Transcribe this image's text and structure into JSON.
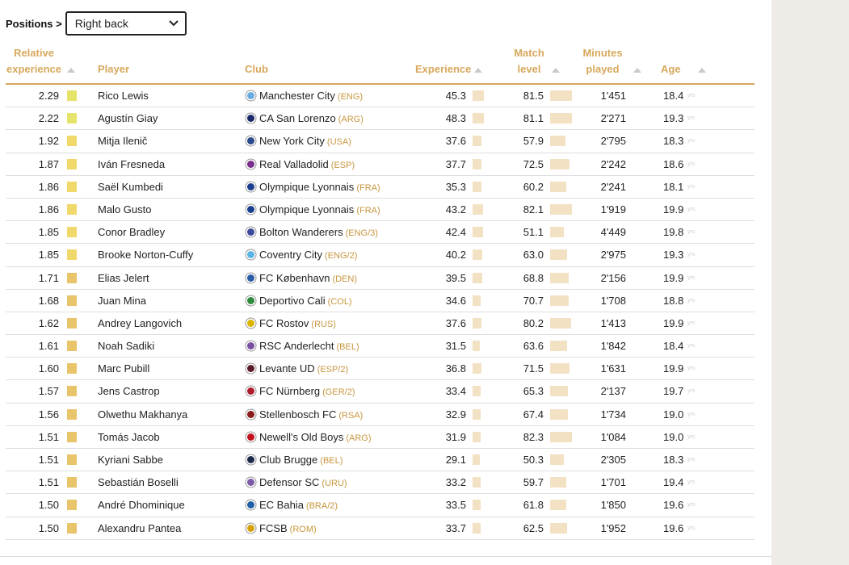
{
  "filter": {
    "label": "Positions >",
    "selected": "Right back"
  },
  "columns": {
    "relative_experience": [
      "Relative",
      "experience"
    ],
    "player": "Player",
    "club": "Club",
    "experience": "Experience",
    "match_level": [
      "Match",
      "level"
    ],
    "minutes_played": [
      "Minutes",
      "played"
    ],
    "age": "Age"
  },
  "age_unit": "yrs",
  "colors": {
    "header_text": "#d8a85c",
    "country_code": "#c8963e",
    "bar_fill": "#f3e1c4",
    "rel_bar_high": "#e6e36a",
    "rel_bar_mid": "#f0d86a",
    "rel_bar_low": "#e8c46a"
  },
  "rows": [
    {
      "rel": "2.29",
      "player": "Rico Lewis",
      "club": "Manchester City",
      "cc": "(ENG)",
      "crest_color": "#6cabdd",
      "exp": "45.3",
      "match": "81.5",
      "mins": "1'451",
      "age": "18.4"
    },
    {
      "rel": "2.22",
      "player": "Agustín Giay",
      "club": "CA San Lorenzo",
      "cc": "(ARG)",
      "crest_color": "#1a2a6c",
      "exp": "48.3",
      "match": "81.1",
      "mins": "2'271",
      "age": "19.3"
    },
    {
      "rel": "1.92",
      "player": "Mitja Ilenič",
      "club": "New York City",
      "cc": "(USA)",
      "crest_color": "#2b4a8b",
      "exp": "37.6",
      "match": "57.9",
      "mins": "2'795",
      "age": "18.3"
    },
    {
      "rel": "1.87",
      "player": "Iván Fresneda",
      "club": "Real Valladolid",
      "cc": "(ESP)",
      "crest_color": "#7b2d8e",
      "exp": "37.7",
      "match": "72.5",
      "mins": "2'242",
      "age": "18.6"
    },
    {
      "rel": "1.86",
      "player": "Saël Kumbedi",
      "club": "Olympique Lyonnais",
      "cc": "(FRA)",
      "crest_color": "#1b3f8f",
      "exp": "35.3",
      "match": "60.2",
      "mins": "2'241",
      "age": "18.1"
    },
    {
      "rel": "1.86",
      "player": "Malo Gusto",
      "club": "Olympique Lyonnais",
      "cc": "(FRA)",
      "crest_color": "#1b3f8f",
      "exp": "43.2",
      "match": "82.1",
      "mins": "1'919",
      "age": "19.9"
    },
    {
      "rel": "1.85",
      "player": "Conor Bradley",
      "club": "Bolton Wanderers",
      "cc": "(ENG/3)",
      "crest_color": "#3b4a9c",
      "exp": "42.4",
      "match": "51.1",
      "mins": "4'449",
      "age": "19.8"
    },
    {
      "rel": "1.85",
      "player": "Brooke Norton-Cuffy",
      "club": "Coventry City",
      "cc": "(ENG/2)",
      "crest_color": "#5ab4e6",
      "exp": "40.2",
      "match": "63.0",
      "mins": "2'975",
      "age": "19.3"
    },
    {
      "rel": "1.71",
      "player": "Elias Jelert",
      "club": "FC København",
      "cc": "(DEN)",
      "crest_color": "#2a5ea8",
      "exp": "39.5",
      "match": "68.8",
      "mins": "2'156",
      "age": "19.9"
    },
    {
      "rel": "1.68",
      "player": "Juan Mina",
      "club": "Deportivo Cali",
      "cc": "(COL)",
      "crest_color": "#2e8b3e",
      "exp": "34.6",
      "match": "70.7",
      "mins": "1'708",
      "age": "18.8"
    },
    {
      "rel": "1.62",
      "player": "Andrey Langovich",
      "club": "FC Rostov",
      "cc": "(RUS)",
      "crest_color": "#d9b400",
      "exp": "37.6",
      "match": "80.2",
      "mins": "1'413",
      "age": "19.9"
    },
    {
      "rel": "1.61",
      "player": "Noah Sadiki",
      "club": "RSC Anderlecht",
      "cc": "(BEL)",
      "crest_color": "#7a4fa0",
      "exp": "31.5",
      "match": "63.6",
      "mins": "1'842",
      "age": "18.4"
    },
    {
      "rel": "1.60",
      "player": "Marc Pubill",
      "club": "Levante UD",
      "cc": "(ESP/2)",
      "crest_color": "#5a1a2a",
      "exp": "36.8",
      "match": "71.5",
      "mins": "1'631",
      "age": "19.9"
    },
    {
      "rel": "1.57",
      "player": "Jens Castrop",
      "club": "FC Nürnberg",
      "cc": "(GER/2)",
      "crest_color": "#b01c2e",
      "exp": "33.4",
      "match": "65.3",
      "mins": "2'137",
      "age": "19.7"
    },
    {
      "rel": "1.56",
      "player": "Olwethu Makhanya",
      "club": "Stellenbosch FC",
      "cc": "(RSA)",
      "crest_color": "#8b1a1a",
      "exp": "32.9",
      "match": "67.4",
      "mins": "1'734",
      "age": "19.0"
    },
    {
      "rel": "1.51",
      "player": "Tomás Jacob",
      "club": "Newell's Old Boys",
      "cc": "(ARG)",
      "crest_color": "#c4111b",
      "exp": "31.9",
      "match": "82.3",
      "mins": "1'084",
      "age": "19.0"
    },
    {
      "rel": "1.51",
      "player": "Kyriani Sabbe",
      "club": "Club Brugge",
      "cc": "(BEL)",
      "crest_color": "#1c2a4a",
      "exp": "29.1",
      "match": "50.3",
      "mins": "2'305",
      "age": "18.3"
    },
    {
      "rel": "1.51",
      "player": "Sebastián Boselli",
      "club": "Defensor SC",
      "cc": "(URU)",
      "crest_color": "#7d5ba6",
      "exp": "33.2",
      "match": "59.7",
      "mins": "1'701",
      "age": "19.4"
    },
    {
      "rel": "1.50",
      "player": "André Dhominique",
      "club": "EC Bahia",
      "cc": "(BRA/2)",
      "crest_color": "#1f5fa8",
      "exp": "33.5",
      "match": "61.8",
      "mins": "1'850",
      "age": "19.6"
    },
    {
      "rel": "1.50",
      "player": "Alexandru Pantea",
      "club": "FCSB",
      "cc": "(ROM)",
      "crest_color": "#d6a20a",
      "exp": "33.7",
      "match": "62.5",
      "mins": "1'952",
      "age": "19.6"
    }
  ]
}
